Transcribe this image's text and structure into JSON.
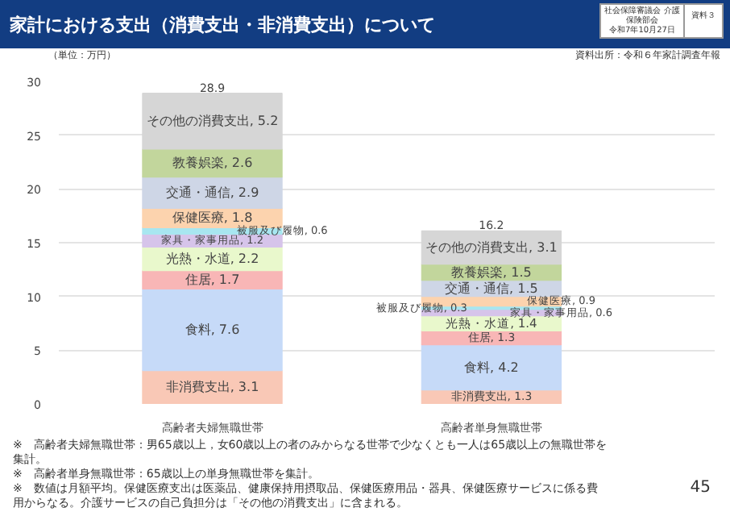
{
  "chart_data": {
    "type": "bar",
    "stacked": true,
    "title": "家計における支出（消費支出・非消費支出）について",
    "categories": [
      "高齢者夫婦無職世帯",
      "高齢者単身無職世帯"
    ],
    "series": [
      {
        "color": "#f9c8b6",
        "values": [
          3.1,
          1.3
        ],
        "value_labels": [
          "非消費支出, 3.1",
          "非消費支出, 1.3"
        ]
      },
      {
        "color": "#c6daf8",
        "values": [
          7.6,
          4.2
        ],
        "value_labels": [
          "食料, 7.6",
          "食料, 4.2"
        ]
      },
      {
        "color": "#f8b6b6",
        "values": [
          1.7,
          1.3
        ],
        "value_labels": [
          "住居, 1.7",
          "住居, 1.3"
        ]
      },
      {
        "color": "#e9f8cc",
        "values": [
          2.2,
          1.4
        ],
        "value_labels": [
          "光熱・水道, 2.2",
          "光熱・水道, 1.4"
        ]
      },
      {
        "color": "#d6c4ea",
        "values": [
          1.2,
          0.6
        ],
        "value_labels": [
          "家具・家事用品, 1.2",
          "家具・家事用品, 0.6"
        ]
      },
      {
        "color": "#a8e6f0",
        "values": [
          0.6,
          0.3
        ],
        "value_labels": [
          "被服及び履物, 0.6",
          "被服及び履物, 0.3"
        ]
      },
      {
        "color": "#fcd3ae",
        "values": [
          1.8,
          0.9
        ],
        "value_labels": [
          "保健医療, 1.8",
          "保健医療, 0.9"
        ]
      },
      {
        "color": "#ced6e6",
        "values": [
          2.9,
          1.5
        ],
        "value_labels": [
          "交通・通信, 2.9",
          "交通・通信, 1.5"
        ]
      },
      {
        "color": "#c2d69c",
        "values": [
          2.6,
          1.5
        ],
        "value_labels": [
          "教養娯楽, 2.6",
          "教養娯楽, 1.5"
        ]
      },
      {
        "color": "#d6d6d6",
        "values": [
          5.2,
          3.1
        ],
        "value_labels": [
          "その他の消費支出, 5.2",
          "その他の消費支出, 3.1"
        ]
      }
    ],
    "totals": [
      "28.9",
      "16.2"
    ],
    "ylim": [
      0,
      30
    ],
    "yticks": [
      0,
      5,
      10,
      15,
      20,
      25,
      30
    ],
    "grid": "y",
    "annotations": [
      "社会保障審議会 介護保険部会",
      "令和7年10月27日",
      "資料３",
      "資料出所：令和６年家計調査年報",
      "（単位：万円）",
      "※　高齢者夫婦無職世帯：男65歳以上，女60歳以上の者のみからなる世帯で少なくとも一人は65歳以上の無職世帯を集計。",
      "※　高齢者単身無職世帯：65歳以上の単身無職世帯を集計。",
      "※　数値は月額平均。保健医療支出は医薬品、健康保持用摂取品、保健医療用品・器具、保健医療サービスに係る費用からなる。介護サービスの自己負担分は「その他の消費支出」に含まれる。",
      "45"
    ]
  }
}
